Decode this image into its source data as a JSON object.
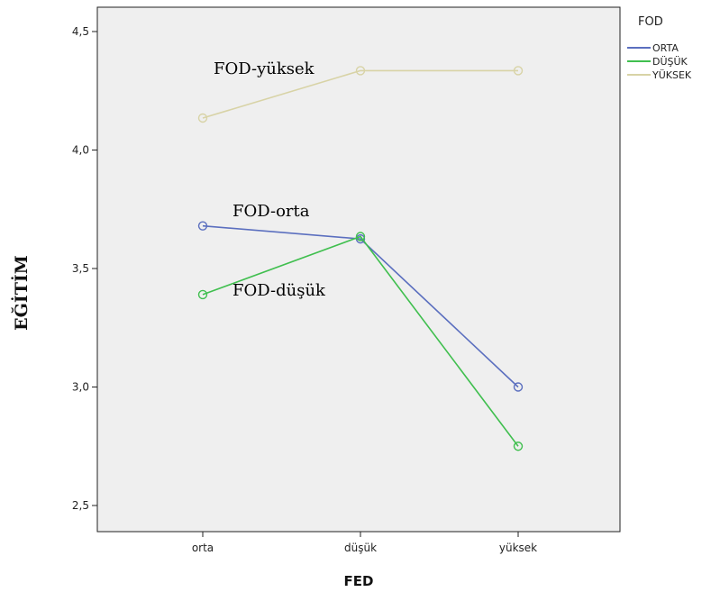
{
  "chart_data": {
    "type": "line",
    "xlabel": "FED",
    "ylabel": "EĞİTİM",
    "categories": [
      "orta",
      "düşük",
      "yüksek"
    ],
    "ylim": [
      2.4,
      4.6
    ],
    "yticks": [
      "2,5",
      "3,0",
      "3,5",
      "4,0",
      "4,5"
    ],
    "ytick_values": [
      2.5,
      3.0,
      3.5,
      4.0,
      4.5
    ],
    "grid": false,
    "legend": {
      "title": "FOD",
      "position": "top-right"
    },
    "series": [
      {
        "name": "ORTA",
        "color": "#5b6fbf",
        "values": [
          3.68,
          3.625,
          3.0
        ]
      },
      {
        "name": "DÜŞÜK",
        "color": "#40bf4f",
        "values": [
          3.39,
          3.635,
          2.75
        ]
      },
      {
        "name": "YÜKSEK",
        "color": "#d8d3a6",
        "values": [
          4.135,
          4.335,
          4.335
        ]
      }
    ],
    "annotations": [
      "FOD-yüksek",
      "FOD-orta",
      "FOD-düşük"
    ],
    "plot_background": "#efefef"
  }
}
